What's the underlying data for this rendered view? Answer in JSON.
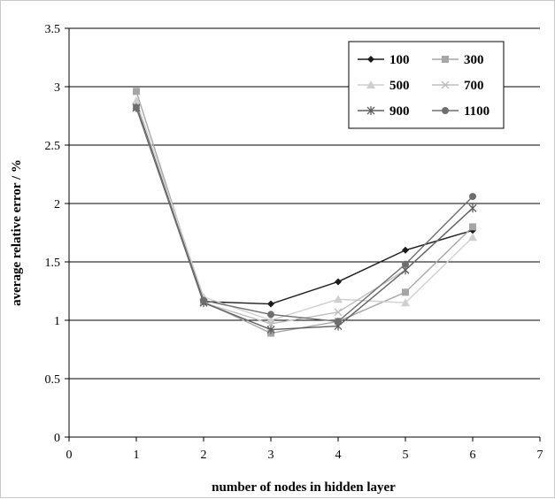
{
  "chart_data": {
    "type": "line",
    "title": "",
    "xlabel": "number of nodes in hidden layer",
    "ylabel": "average relative error / %",
    "xlim": [
      0,
      7
    ],
    "ylim": [
      0,
      3.5
    ],
    "x_ticks": [
      "0",
      "1",
      "2",
      "3",
      "4",
      "5",
      "6",
      "7"
    ],
    "y_ticks": [
      "0",
      "0.5",
      "1",
      "1.5",
      "2",
      "2.5",
      "3",
      "3.5"
    ],
    "grid": "horizontal",
    "legend_position": "top-right",
    "x": [
      1,
      2,
      3,
      4,
      5,
      6
    ],
    "series": [
      {
        "name": "100",
        "color": "#1a1a1a",
        "marker": "diamond",
        "values": [
          2.84,
          1.16,
          1.14,
          1.33,
          1.6,
          1.77
        ]
      },
      {
        "name": "300",
        "color": "#a6a6a6",
        "marker": "square",
        "values": [
          2.96,
          1.16,
          0.89,
          0.99,
          1.24,
          1.8
        ]
      },
      {
        "name": "500",
        "color": "#cfcfcf",
        "marker": "triangle",
        "values": [
          2.88,
          1.2,
          1.0,
          1.18,
          1.15,
          1.71
        ]
      },
      {
        "name": "700",
        "color": "#bdbdbd",
        "marker": "x",
        "values": [
          2.83,
          1.15,
          0.97,
          1.07,
          1.43,
          1.96
        ]
      },
      {
        "name": "900",
        "color": "#5f5f5f",
        "marker": "star",
        "values": [
          2.82,
          1.15,
          0.92,
          0.95,
          1.43,
          1.96
        ]
      },
      {
        "name": "1100",
        "color": "#6e6e6e",
        "marker": "circle",
        "values": [
          2.82,
          1.17,
          1.05,
          0.99,
          1.48,
          2.06
        ]
      }
    ]
  }
}
